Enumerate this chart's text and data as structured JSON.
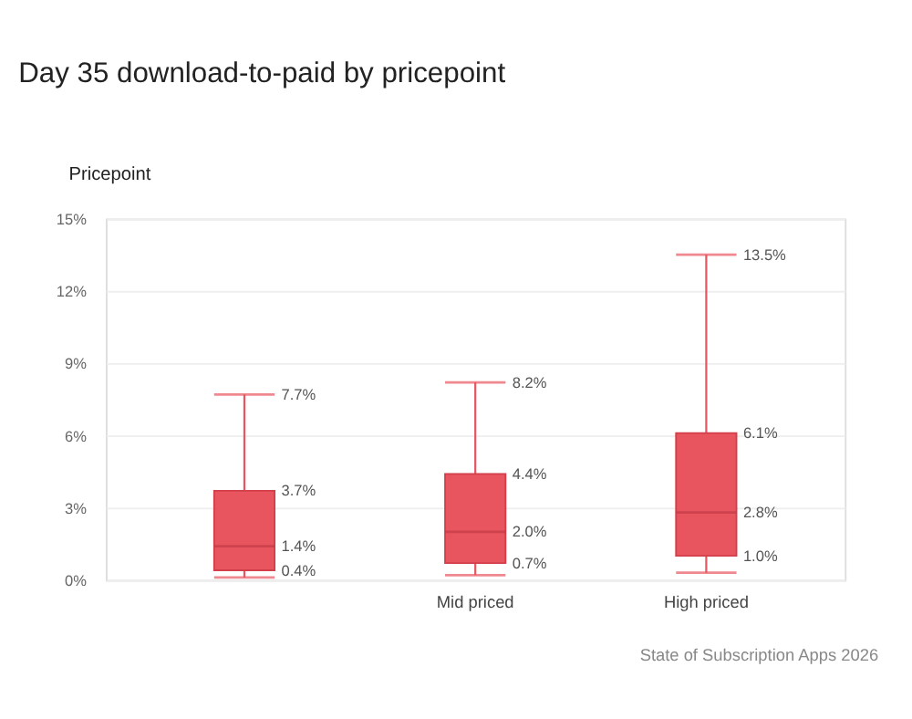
{
  "chart_data": {
    "type": "box",
    "title": "Day 35 download-to-paid by pricepoint",
    "categories": [
      null,
      "Mid priced",
      "High priced"
    ],
    "boxes": [
      {
        "low": 0.1,
        "q1": 0.4,
        "median": 1.4,
        "q3": 3.7,
        "high": 7.7
      },
      {
        "low": 0.2,
        "q1": 0.7,
        "median": 2.0,
        "q3": 4.4,
        "high": 8.2
      },
      {
        "low": 0.3,
        "q1": 1.0,
        "median": 2.8,
        "q3": 6.1,
        "high": 13.5
      }
    ],
    "value_labels": [
      [
        "7.7%",
        "3.7%",
        "1.4%",
        "0.4%"
      ],
      [
        "8.2%",
        "4.4%",
        "2.0%",
        "0.7%"
      ],
      [
        "13.5%",
        "6.1%",
        "2.8%",
        "1.0%"
      ]
    ],
    "color": "#e8555f",
    "ylim": [
      0,
      15
    ],
    "yticks": [
      {
        "value": 0,
        "label": "0%"
      },
      {
        "value": 3,
        "label": "3%"
      },
      {
        "value": 6,
        "label": "6%"
      },
      {
        "value": 9,
        "label": "9%"
      },
      {
        "value": 12,
        "label": "12%"
      },
      {
        "value": 15,
        "label": "15%"
      }
    ],
    "grid": "y",
    "annotations": [
      "Pricepoint",
      "State of Subscription Apps 2026"
    ]
  }
}
